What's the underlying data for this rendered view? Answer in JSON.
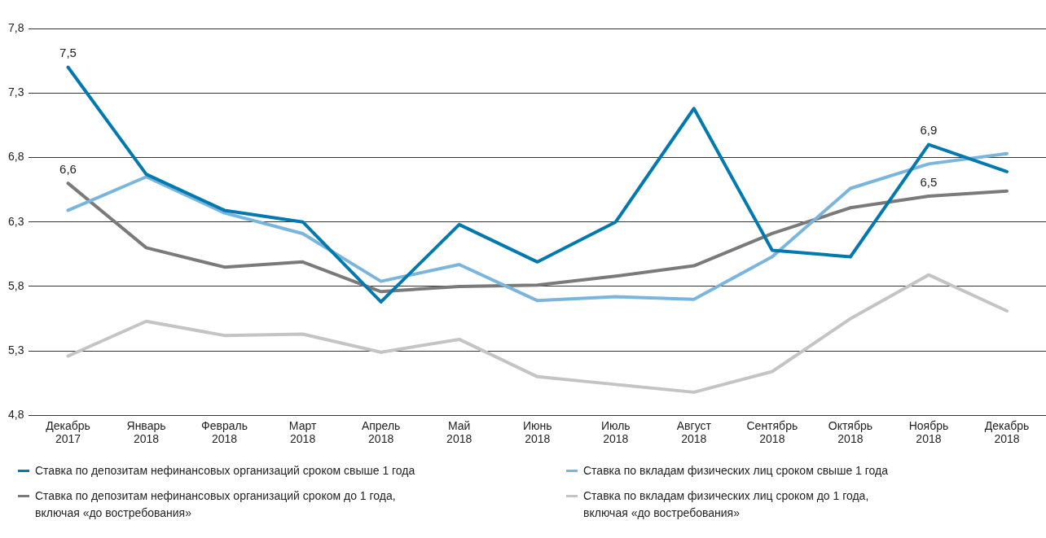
{
  "chart_data": {
    "type": "line",
    "categories": [
      "Декабрь 2017",
      "Январь 2018",
      "Февраль 2018",
      "Март 2018",
      "Апрель 2018",
      "Май 2018",
      "Июнь 2018",
      "Июль 2018",
      "Август 2018",
      "Сентябрь 2018",
      "Октябрь 2018",
      "Ноябрь 2018",
      "Декабрь 2018"
    ],
    "ylim": [
      4.8,
      7.8
    ],
    "yticks": [
      {
        "value": 4.8,
        "label": "4,8"
      },
      {
        "value": 5.3,
        "label": "5,3"
      },
      {
        "value": 5.8,
        "label": "5,8"
      },
      {
        "value": 6.3,
        "label": "6,3"
      },
      {
        "value": 6.8,
        "label": "6,8"
      },
      {
        "value": 7.3,
        "label": "7,3"
      },
      {
        "value": 7.8,
        "label": "7,8"
      }
    ],
    "grid": "y",
    "legend": "bottom",
    "marker": "none",
    "line_style": "solid",
    "series": [
      {
        "name": "Ставка по депозитам нефинансовых организаций сроком свыше 1 года",
        "color": "#0079b0",
        "values": [
          7.5,
          6.67,
          6.39,
          6.3,
          5.68,
          6.28,
          5.99,
          6.3,
          7.18,
          6.08,
          6.03,
          6.9,
          6.69
        ],
        "value_labels": [
          "7,5",
          null,
          null,
          null,
          null,
          null,
          null,
          null,
          null,
          null,
          null,
          "6,9",
          null
        ]
      },
      {
        "name": "Ставка по вкладам физических лиц сроком свыше 1 года",
        "color": "#7ab5dd",
        "values": [
          6.39,
          6.65,
          6.37,
          6.21,
          5.84,
          5.97,
          5.69,
          5.72,
          5.7,
          6.03,
          6.56,
          6.75,
          6.83
        ]
      },
      {
        "name": "Ставка по депозитам нефинансовых организаций сроком до 1 года, включая «до востребования»",
        "color": "#7a7a7a",
        "values": [
          6.6,
          6.1,
          5.95,
          5.99,
          5.76,
          5.8,
          5.81,
          5.88,
          5.96,
          6.21,
          6.41,
          6.5,
          6.54
        ],
        "value_labels": [
          "6,6",
          null,
          null,
          null,
          null,
          null,
          null,
          null,
          null,
          null,
          null,
          "6,5",
          null
        ]
      },
      {
        "name": "Ставка по вкладам физических лиц сроком до 1 года, включая «до востребования»",
        "color": "#c4c4c4",
        "values": [
          5.26,
          5.53,
          5.42,
          5.43,
          5.29,
          5.39,
          5.1,
          5.04,
          4.98,
          5.14,
          5.55,
          5.89,
          5.61
        ]
      }
    ]
  }
}
